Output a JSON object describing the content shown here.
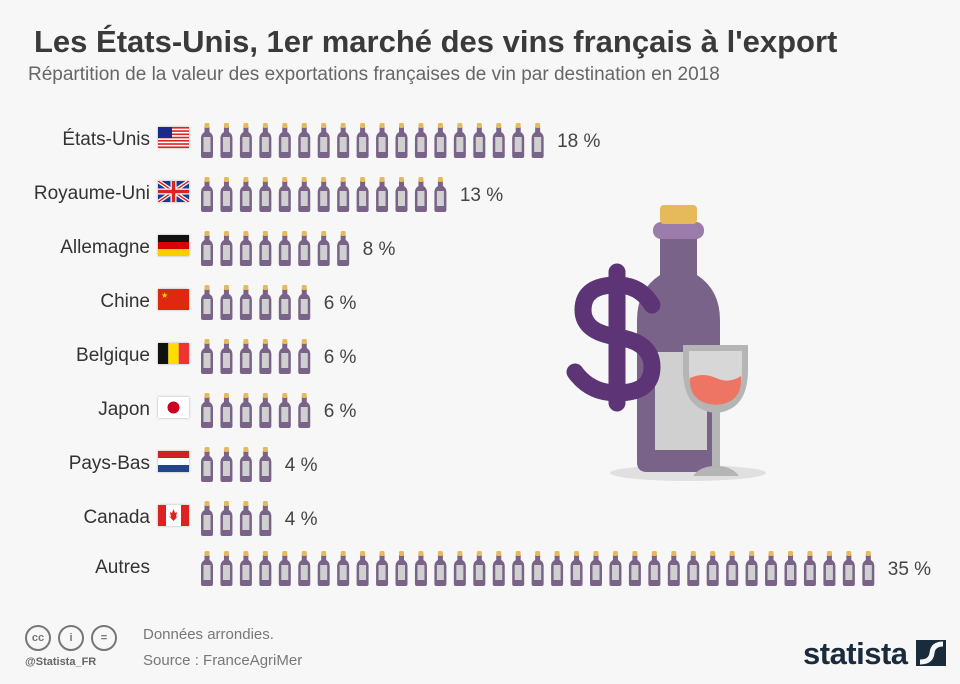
{
  "title": "Les États-Unis, 1er marché des vins français à l'export",
  "subtitle": "Répartition de la valeur des exportations françaises de vin par destination en 2018",
  "chart_data": {
    "type": "pictogram-bar",
    "unit": "%",
    "categories": [
      "États-Unis",
      "Royaume-Uni",
      "Allemagne",
      "Chine",
      "Belgique",
      "Japon",
      "Pays-Bas",
      "Canada",
      "Autres"
    ],
    "values": [
      18,
      13,
      8,
      6,
      6,
      6,
      4,
      4,
      35
    ],
    "labels": [
      "18 %",
      "13 %",
      "8 %",
      "6 %",
      "6 %",
      "6 %",
      "4 %",
      "4 %",
      "35 %"
    ],
    "flags": [
      "us",
      "gb",
      "de",
      "cn",
      "be",
      "jp",
      "nl",
      "ca",
      null
    ],
    "icon": "wine-bottle-icon",
    "colors": {
      "bottle": "#7a6388",
      "cap": "#e6b95a",
      "label": "#d0d0d0",
      "dollar": "#5d3577",
      "wine": "#ee7464",
      "glass": "#b5b5b5"
    }
  },
  "footer": {
    "note": "Données arrondies.",
    "source": "Source : FranceAgriMer",
    "handle": "@Statista_FR",
    "logo": "statista",
    "cc": [
      "cc",
      "i",
      "="
    ]
  }
}
